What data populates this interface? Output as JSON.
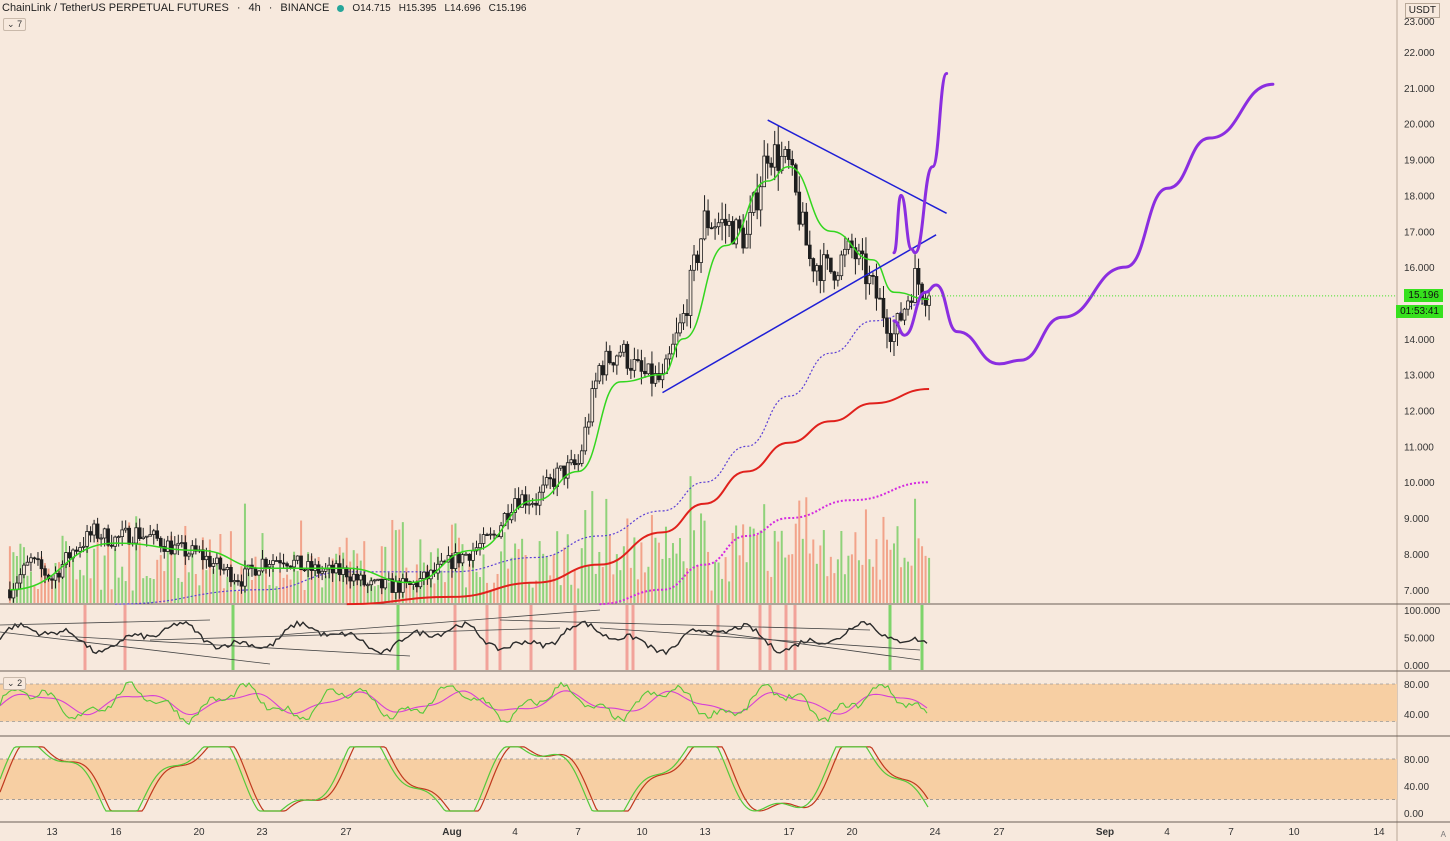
{
  "header": {
    "symbol": "ChainLink / TetherUS PERPETUAL FUTURES",
    "interval": "4h",
    "exchange": "BINANCE",
    "open": "O14.715",
    "high": "H15.395",
    "low": "L14.696",
    "close": "C15.196",
    "indicator_count": "7",
    "pane2_count": "2"
  },
  "axis": {
    "currency": "USDT",
    "auto_label": "A",
    "last_price": "15.196",
    "countdown": "01:53:41",
    "price_ticks": [
      "22.000",
      "21.000",
      "20.000",
      "19.000",
      "18.000",
      "17.000",
      "16.000",
      "14.000",
      "13.000",
      "12.000",
      "11.000",
      "10.000",
      "9.000",
      "8.000",
      "7.000"
    ],
    "top_tick_partial": "23.000",
    "osc1_ticks": [
      "100.000",
      "50.000",
      "0.000"
    ],
    "osc2_ticks": [
      "80.00",
      "40.00"
    ],
    "osc3_ticks": [
      "80.00",
      "40.00",
      "0.00"
    ],
    "date_ticks": [
      {
        "label": "13",
        "bold": false
      },
      {
        "label": "16",
        "bold": false
      },
      {
        "label": "20",
        "bold": false
      },
      {
        "label": "23",
        "bold": false
      },
      {
        "label": "27",
        "bold": false
      },
      {
        "label": "Aug",
        "bold": true
      },
      {
        "label": "4",
        "bold": false
      },
      {
        "label": "7",
        "bold": false
      },
      {
        "label": "10",
        "bold": false
      },
      {
        "label": "13",
        "bold": false
      },
      {
        "label": "17",
        "bold": false
      },
      {
        "label": "20",
        "bold": false
      },
      {
        "label": "24",
        "bold": false
      },
      {
        "label": "27",
        "bold": false
      },
      {
        "label": "Sep",
        "bold": true
      },
      {
        "label": "4",
        "bold": false
      },
      {
        "label": "7",
        "bold": false
      },
      {
        "label": "10",
        "bold": false
      },
      {
        "label": "14",
        "bold": false
      }
    ]
  },
  "colors": {
    "background": "#f7e9dd",
    "up_candle": "#f7e9dd",
    "down_candle": "#1e1e1e",
    "ema_fast": "#33d61f",
    "sma_slow": "#5b3fd6",
    "ema_long": "#e0211c",
    "sma_long": "#d42ae0",
    "trendline": "#1f1fd6",
    "projection": "#8b2ee0",
    "volume_up": "#8fd27a",
    "volume_down": "#f2a38a",
    "osc_band": "#f7cfa3",
    "last_price_badge": "#36e11d"
  },
  "chart_data": {
    "type": "candlestick",
    "symbol": "ChainLink / TetherUS PERPETUAL FUTURES",
    "interval": "4h",
    "ylim": [
      6.6,
      23.0
    ],
    "last_close": 15.196,
    "price_path": [
      {
        "date": "Jul 11",
        "price": 7.0
      },
      {
        "date": "Jul 12",
        "price": 7.8
      },
      {
        "date": "Jul 13",
        "price": 7.3
      },
      {
        "date": "Jul 14",
        "price": 8.1
      },
      {
        "date": "Jul 15",
        "price": 8.6
      },
      {
        "date": "Jul 16",
        "price": 8.4
      },
      {
        "date": "Jul 17",
        "price": 8.6
      },
      {
        "date": "Jul 18",
        "price": 8.4
      },
      {
        "date": "Jul 19",
        "price": 8.1
      },
      {
        "date": "Jul 20",
        "price": 8.0
      },
      {
        "date": "Jul 21",
        "price": 7.6
      },
      {
        "date": "Jul 22",
        "price": 7.3
      },
      {
        "date": "Jul 23",
        "price": 7.8
      },
      {
        "date": "Jul 24",
        "price": 7.9
      },
      {
        "date": "Jul 25",
        "price": 7.6
      },
      {
        "date": "Jul 26",
        "price": 7.5
      },
      {
        "date": "Jul 27",
        "price": 7.5
      },
      {
        "date": "Jul 28",
        "price": 7.1
      },
      {
        "date": "Jul 29",
        "price": 7.1
      },
      {
        "date": "Jul 30",
        "price": 7.1
      },
      {
        "date": "Jul 31",
        "price": 7.4
      },
      {
        "date": "Aug 1",
        "price": 7.8
      },
      {
        "date": "Aug 2",
        "price": 8.1
      },
      {
        "date": "Aug 3",
        "price": 8.5
      },
      {
        "date": "Aug 4",
        "price": 9.6
      },
      {
        "date": "Aug 5",
        "price": 9.5
      },
      {
        "date": "Aug 6",
        "price": 10.2
      },
      {
        "date": "Aug 7",
        "price": 10.5
      },
      {
        "date": "Aug 8",
        "price": 13.2
      },
      {
        "date": "Aug 9",
        "price": 13.7
      },
      {
        "date": "Aug 10",
        "price": 13.0
      },
      {
        "date": "Aug 11",
        "price": 12.8
      },
      {
        "date": "Aug 12",
        "price": 14.6
      },
      {
        "date": "Aug 13",
        "price": 17.3
      },
      {
        "date": "Aug 14",
        "price": 17.2
      },
      {
        "date": "Aug 15",
        "price": 16.8
      },
      {
        "date": "Aug 16",
        "price": 19.3
      },
      {
        "date": "Aug 17",
        "price": 18.8
      },
      {
        "date": "Aug 18",
        "price": 16.2
      },
      {
        "date": "Aug 19",
        "price": 15.9
      },
      {
        "date": "Aug 20",
        "price": 16.5
      },
      {
        "date": "Aug 21",
        "price": 15.4
      },
      {
        "date": "Aug 22",
        "price": 14.1
      },
      {
        "date": "Aug 23",
        "price": 15.7
      },
      {
        "date": "Aug 23 16:00",
        "price": 15.196
      }
    ],
    "indicators": {
      "ema_fast": [
        {
          "date": "Jul 11",
          "price": 7.0
        },
        {
          "date": "Jul 16",
          "price": 8.3
        },
        {
          "date": "Jul 20",
          "price": 8.1
        },
        {
          "date": "Jul 23",
          "price": 7.6
        },
        {
          "date": "Jul 27",
          "price": 7.6
        },
        {
          "date": "Jul 30",
          "price": 7.2
        },
        {
          "date": "Aug 2",
          "price": 8.1
        },
        {
          "date": "Aug 5",
          "price": 9.5
        },
        {
          "date": "Aug 7",
          "price": 10.3
        },
        {
          "date": "Aug 9",
          "price": 12.8
        },
        {
          "date": "Aug 11",
          "price": 13.0
        },
        {
          "date": "Aug 12",
          "price": 14.0
        },
        {
          "date": "Aug 14",
          "price": 16.6
        },
        {
          "date": "Aug 16",
          "price": 18.4
        },
        {
          "date": "Aug 17",
          "price": 18.8
        },
        {
          "date": "Aug 19",
          "price": 17.0
        },
        {
          "date": "Aug 21",
          "price": 16.2
        },
        {
          "date": "Aug 22",
          "price": 15.3
        },
        {
          "date": "Aug 23 16:00",
          "price": 15.1
        }
      ],
      "sma_slow": [
        {
          "date": "Jul 16",
          "price": 6.6
        },
        {
          "date": "Jul 23",
          "price": 7.0
        },
        {
          "date": "Jul 27",
          "price": 7.5
        },
        {
          "date": "Aug 1",
          "price": 7.5
        },
        {
          "date": "Aug 5",
          "price": 7.9
        },
        {
          "date": "Aug 8",
          "price": 8.5
        },
        {
          "date": "Aug 11",
          "price": 9.2
        },
        {
          "date": "Aug 13",
          "price": 10.0
        },
        {
          "date": "Aug 15",
          "price": 11.0
        },
        {
          "date": "Aug 17",
          "price": 12.4
        },
        {
          "date": "Aug 19",
          "price": 13.6
        },
        {
          "date": "Aug 21",
          "price": 14.5
        },
        {
          "date": "Aug 23 16:00",
          "price": 15.0
        }
      ],
      "ema_long": [
        {
          "date": "Jul 27",
          "price": 6.6
        },
        {
          "date": "Aug 1",
          "price": 6.8
        },
        {
          "date": "Aug 5",
          "price": 7.2
        },
        {
          "date": "Aug 8",
          "price": 7.7
        },
        {
          "date": "Aug 11",
          "price": 8.6
        },
        {
          "date": "Aug 13",
          "price": 9.4
        },
        {
          "date": "Aug 15",
          "price": 10.3
        },
        {
          "date": "Aug 17",
          "price": 11.1
        },
        {
          "date": "Aug 19",
          "price": 11.7
        },
        {
          "date": "Aug 21",
          "price": 12.2
        },
        {
          "date": "Aug 23 16:00",
          "price": 12.6
        }
      ],
      "sma_long": [
        {
          "date": "Aug 8",
          "price": 6.6
        },
        {
          "date": "Aug 11",
          "price": 7.0
        },
        {
          "date": "Aug 13",
          "price": 7.7
        },
        {
          "date": "Aug 15",
          "price": 8.5
        },
        {
          "date": "Aug 17",
          "price": 9.0
        },
        {
          "date": "Aug 20",
          "price": 9.5
        },
        {
          "date": "Aug 23 16:00",
          "price": 10.0
        }
      ]
    },
    "drawings": {
      "descending_trendline": [
        {
          "date": "Aug 16",
          "price": 20.1
        },
        {
          "date": "Aug 24 12:00",
          "price": 17.5
        }
      ],
      "ascending_trendline": [
        {
          "date": "Aug 11",
          "price": 12.5
        },
        {
          "date": "Aug 24",
          "price": 16.9
        }
      ],
      "projection_bullish": [
        {
          "date": "Aug 22",
          "price": 16.4
        },
        {
          "date": "Aug 22 08:00",
          "price": 18.0
        },
        {
          "date": "Aug 22 20:00",
          "price": 16.5
        },
        {
          "date": "Aug 23",
          "price": 16.4
        },
        {
          "date": "Aug 23 20:00",
          "price": 18.8
        },
        {
          "date": "Aug 24 12:00",
          "price": 21.4
        }
      ],
      "projection_main": [
        {
          "date": "Aug 22",
          "price": 14.5
        },
        {
          "date": "Aug 22 12:00",
          "price": 14.1
        },
        {
          "date": "Aug 23 12:00",
          "price": 15.3
        },
        {
          "date": "Aug 24",
          "price": 15.5
        },
        {
          "date": "Aug 25",
          "price": 14.2
        },
        {
          "date": "Aug 27",
          "price": 13.3
        },
        {
          "date": "Aug 28",
          "price": 13.4
        },
        {
          "date": "Aug 30",
          "price": 14.6
        },
        {
          "date": "Sep 2",
          "price": 16.0
        },
        {
          "date": "Sep 4",
          "price": 18.2
        },
        {
          "date": "Sep 6",
          "price": 19.6
        },
        {
          "date": "Sep 9",
          "price": 21.1
        }
      ]
    }
  }
}
